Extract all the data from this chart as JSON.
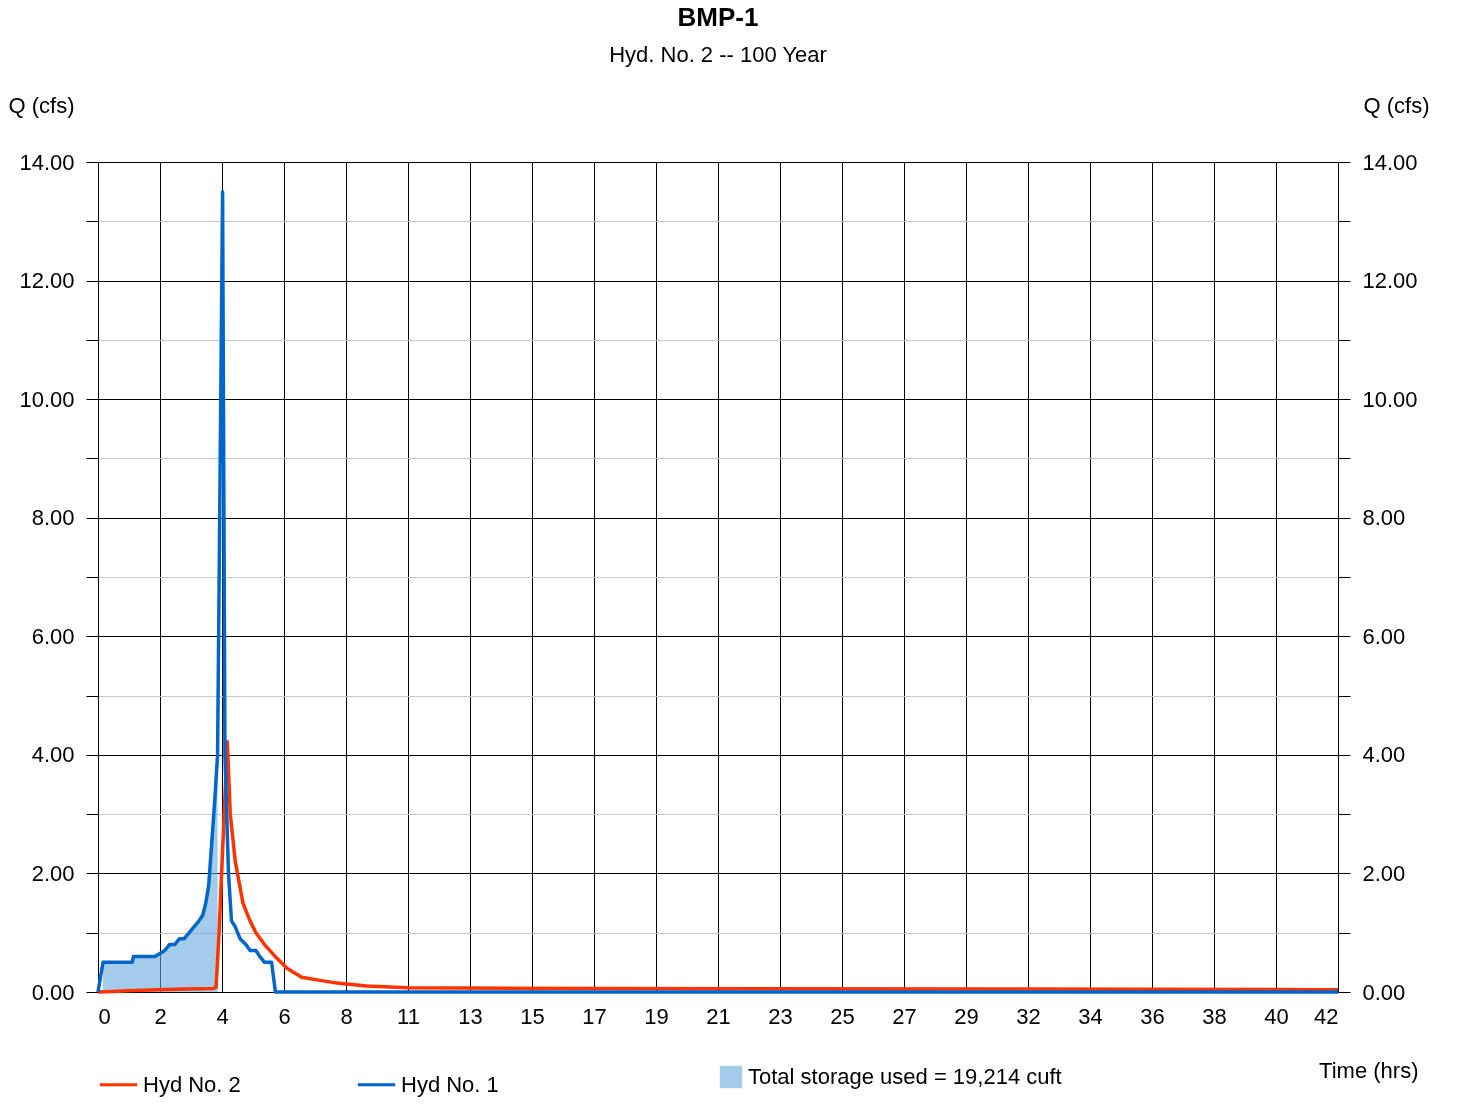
{
  "chart_data": {
    "type": "line",
    "title": "BMP-1",
    "subtitle": "Hyd. No. 2 -- 100 Year",
    "xlabel": "Time (hrs)",
    "ylabel": "Q (cfs)",
    "y2label": "Q (cfs)",
    "xlim": [
      0,
      42
    ],
    "ylim": [
      0,
      14
    ],
    "y2lim": [
      0,
      14
    ],
    "xticks": [
      0,
      {
        "value": 2.1,
        "label": "2"
      },
      {
        "value": 4.2,
        "label": "4"
      },
      {
        "value": 6.3,
        "label": "6"
      },
      {
        "value": 8.4,
        "label": "8"
      },
      {
        "value": 10.5,
        "label": "11"
      },
      {
        "value": 12.6,
        "label": "13"
      },
      {
        "value": 14.7,
        "label": "15"
      },
      {
        "value": 16.8,
        "label": "17"
      },
      {
        "value": 18.9,
        "label": "19"
      },
      21,
      {
        "value": 23.1,
        "label": "23"
      },
      {
        "value": 25.2,
        "label": "25"
      },
      {
        "value": 27.3,
        "label": "27"
      },
      {
        "value": 29.4,
        "label": "29"
      },
      {
        "value": 31.5,
        "label": "32"
      },
      {
        "value": 33.6,
        "label": "34"
      },
      {
        "value": 35.7,
        "label": "36"
      },
      {
        "value": 37.8,
        "label": "38"
      },
      {
        "value": 39.9,
        "label": "40"
      },
      42
    ],
    "yticks": [
      {
        "value": 0,
        "label": "0.00"
      },
      {
        "value": 1,
        "label": null
      },
      {
        "value": 2,
        "label": "2.00"
      },
      {
        "value": 3,
        "label": null
      },
      {
        "value": 4,
        "label": "4.00"
      },
      {
        "value": 5,
        "label": null
      },
      {
        "value": 6,
        "label": "6.00"
      },
      {
        "value": 7,
        "label": null
      },
      {
        "value": 8,
        "label": "8.00"
      },
      {
        "value": 9,
        "label": null
      },
      {
        "value": 10,
        "label": "10.00"
      },
      {
        "value": 11,
        "label": null
      },
      {
        "value": 12,
        "label": "12.00"
      },
      {
        "value": 13,
        "label": null
      },
      {
        "value": 14,
        "label": "14.00"
      }
    ],
    "y2ticks": [
      {
        "value": 0,
        "label": "0.00"
      },
      {
        "value": 1,
        "label": null
      },
      {
        "value": 2,
        "label": "2.00"
      },
      {
        "value": 3,
        "label": null
      },
      {
        "value": 4,
        "label": "4.00"
      },
      {
        "value": 5,
        "label": null
      },
      {
        "value": 6,
        "label": "6.00"
      },
      {
        "value": 7,
        "label": null
      },
      {
        "value": 8,
        "label": "8.00"
      },
      {
        "value": 9,
        "label": null
      },
      {
        "value": 10,
        "label": "10.00"
      },
      {
        "value": 11,
        "label": null
      },
      {
        "value": 12,
        "label": "12.00"
      },
      {
        "value": 13,
        "label": null
      },
      {
        "value": 14,
        "label": "14.00"
      }
    ],
    "grid": true,
    "legend": "bottom",
    "line_style": "solid",
    "marker": "none",
    "series": [
      {
        "name": "Hyd No. 2",
        "color": "#ff3300",
        "type": "line",
        "x": [
          0,
          0.5,
          1,
          2,
          3,
          3.9,
          4.0,
          4.1,
          4.38,
          4.48,
          4.65,
          4.91,
          5.15,
          5.35,
          5.64,
          6.0,
          6.4,
          6.9,
          7.47,
          8.1,
          9.1,
          10.5,
          16.8,
          30,
          42
        ],
        "values": [
          0,
          0.01,
          0.02,
          0.04,
          0.05,
          0.06,
          0.08,
          1.0,
          4.22,
          3.0,
          2.2,
          1.5,
          1.2,
          1.0,
          0.8,
          0.6,
          0.4,
          0.25,
          0.2,
          0.15,
          0.1,
          0.07,
          0.06,
          0.05,
          0.04
        ]
      },
      {
        "name": "Hyd No. 1",
        "color": "#0066cc",
        "type": "line",
        "x": [
          0,
          0.17,
          0.3,
          1.16,
          1.2,
          1.93,
          2.1,
          2.26,
          2.42,
          2.6,
          2.76,
          2.92,
          3.09,
          3.25,
          3.42,
          3.55,
          3.65,
          3.75,
          3.85,
          3.95,
          4.05,
          4.22,
          4.3,
          4.42,
          4.52,
          4.65,
          4.81,
          5.01,
          5.15,
          5.35,
          5.48,
          5.64,
          5.88,
          6.01,
          42
        ],
        "values": [
          0,
          0.5,
          0.5,
          0.5,
          0.6,
          0.6,
          0.65,
          0.7,
          0.8,
          0.8,
          0.9,
          0.9,
          1.0,
          1.1,
          1.2,
          1.3,
          1.5,
          1.8,
          2.5,
          3.2,
          4.0,
          13.5,
          4.0,
          2.0,
          1.2,
          1.1,
          0.9,
          0.8,
          0.7,
          0.7,
          0.6,
          0.5,
          0.5,
          0,
          0
        ]
      },
      {
        "name": "Total storage used = 19,214 cuft",
        "color": "#66aadd",
        "type": "area",
        "x": [
          0.17,
          0.3,
          1.16,
          1.2,
          1.93,
          2.1,
          2.26,
          2.42,
          2.6,
          2.76,
          2.92,
          3.09,
          3.25,
          3.42,
          3.55,
          3.65,
          3.75,
          3.85,
          3.95,
          4.05
        ],
        "values": [
          0.5,
          0.5,
          0.5,
          0.6,
          0.6,
          0.65,
          0.7,
          0.8,
          0.8,
          0.9,
          0.9,
          1.0,
          1.1,
          1.2,
          1.3,
          1.5,
          1.8,
          2.5,
          3.2,
          4.0
        ]
      }
    ]
  }
}
